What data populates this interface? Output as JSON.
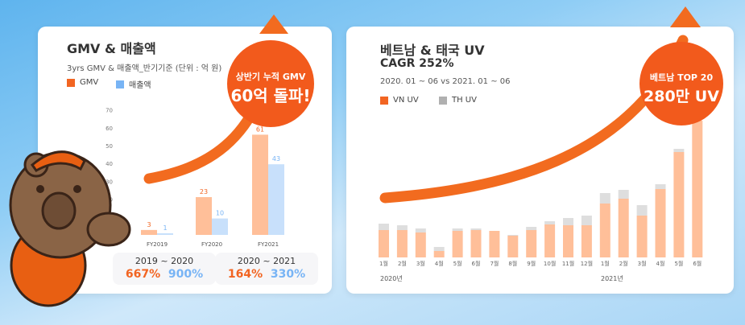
{
  "colors": {
    "gmv": "#f26522",
    "gmv_bar": "#ffbf99",
    "revenue": "#78b4f5",
    "revenue_bar": "#c8e0fb",
    "vn": "#f26522",
    "vn_bar": "#ffbf99",
    "th": "#b0b0b0",
    "th_bar": "#dedede",
    "arrow": "#f26b1f"
  },
  "left": {
    "title": "GMV & 매출액",
    "subtitle": "3yrs GMV & 매출액_반기기준 (단위 : 억 원)",
    "badge": {
      "line1": "상반기 누적 GMV",
      "line2": "60억 돌파!"
    },
    "growth": [
      {
        "period": "2019 ~ 2020",
        "gmv": "667%",
        "revenue": "900%"
      },
      {
        "period": "2020 ~ 2021",
        "gmv": "164%",
        "revenue": "330%"
      }
    ]
  },
  "right": {
    "title": "베트남 & 태국 UV",
    "cagr": "CAGR 252%",
    "period": "2020. 01 ~ 06 vs 2021. 01 ~ 06",
    "badge": {
      "line1": "베트남 TOP 20",
      "line2": "280만 UV"
    },
    "year_labels": [
      "2020년",
      "2021년"
    ]
  },
  "chart_data": [
    {
      "type": "bar",
      "title": "GMV & 매출액",
      "categories": [
        "FY2019",
        "FY2020",
        "FY2021"
      ],
      "series": [
        {
          "name": "GMV",
          "values": [
            3,
            23,
            61
          ]
        },
        {
          "name": "매출액",
          "values": [
            1,
            10,
            43
          ]
        }
      ],
      "yticks": [
        20,
        30,
        40,
        50,
        60,
        70
      ],
      "ylim": [
        0,
        70
      ],
      "legend": "top-left"
    },
    {
      "type": "bar",
      "stacked": true,
      "title": "베트남 & 태국 UV",
      "unit": "relative",
      "categories": [
        "1월",
        "2월",
        "3월",
        "4월",
        "5월",
        "6월",
        "7월",
        "8월",
        "9월",
        "10월",
        "11월",
        "12월",
        "1월",
        "2월",
        "3월",
        "4월",
        "5월",
        "6월"
      ],
      "series": [
        {
          "name": "VN UV",
          "values": [
            34,
            34,
            31,
            8,
            33,
            34,
            33,
            27,
            34,
            41,
            40,
            40,
            67,
            73,
            52,
            85,
            131,
            170
          ]
        },
        {
          "name": "TH UV",
          "values": [
            8,
            6,
            5,
            5,
            3,
            2,
            0,
            1,
            4,
            4,
            9,
            12,
            13,
            11,
            13,
            6,
            4,
            0
          ]
        }
      ],
      "legend": "top-left"
    }
  ]
}
